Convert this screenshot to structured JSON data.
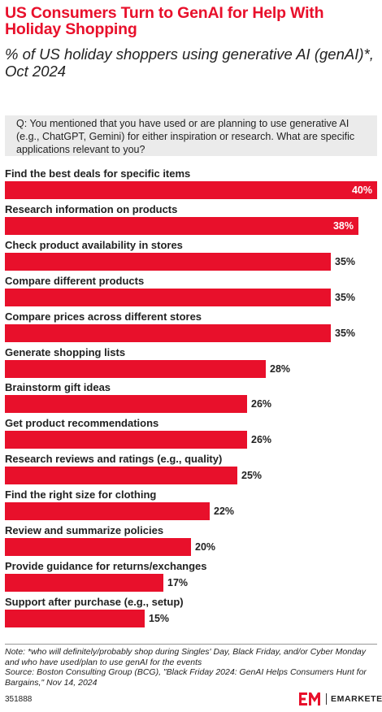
{
  "header": {
    "title": "US Consumers Turn to GenAI for Help With Holiday Shopping",
    "subtitle": "% of US holiday shoppers using generative AI (genAI)*, Oct 2024"
  },
  "question": "Q: You mentioned that you have used or are planning to use generative AI (e.g., ChatGPT, Gemini) for either inspiration or research. What are specific applications relevant to you?",
  "chart_data": {
    "type": "bar",
    "orientation": "horizontal",
    "title": "US Consumers Turn to GenAI for Help With Holiday Shopping",
    "subtitle": "% of US holiday shoppers using generative AI (genAI)*, Oct 2024",
    "categories": [
      "Find the best deals for specific items",
      "Research information on products",
      "Check product availability in stores",
      "Compare different products",
      "Compare prices across different stores",
      "Generate shopping lists",
      "Brainstorm gift ideas",
      "Get product recommendations",
      "Research reviews and ratings (e.g., quality)",
      "Find the right size for clothing",
      "Review and summarize policies",
      "Provide guidance for returns/exchanges",
      "Support after purchase (e.g., setup)"
    ],
    "values": [
      40,
      38,
      35,
      35,
      35,
      28,
      26,
      26,
      25,
      22,
      20,
      17,
      15
    ],
    "value_labels": [
      "40%",
      "38%",
      "35%",
      "35%",
      "35%",
      "28%",
      "26%",
      "26%",
      "25%",
      "22%",
      "20%",
      "17%",
      "15%"
    ],
    "xlim": [
      0,
      40
    ],
    "bar_color": "#e8102b",
    "grid": false,
    "legend": "none"
  },
  "footer": {
    "note": "Note: *who will definitely/probably shop during Singles' Day, Black Friday, and/or Cyber Monday and who have used/plan to use genAI for the events",
    "source": "Source: Boston Consulting Group (BCG), \"Black Friday 2024: GenAI Helps Consumers Hunt for Bargains,\" Nov 14, 2024",
    "chart_id": "351888",
    "brand": "EMARKETER"
  },
  "colors": {
    "accent": "#e8102b",
    "question_bg": "#ebebeb",
    "text": "#222222"
  }
}
